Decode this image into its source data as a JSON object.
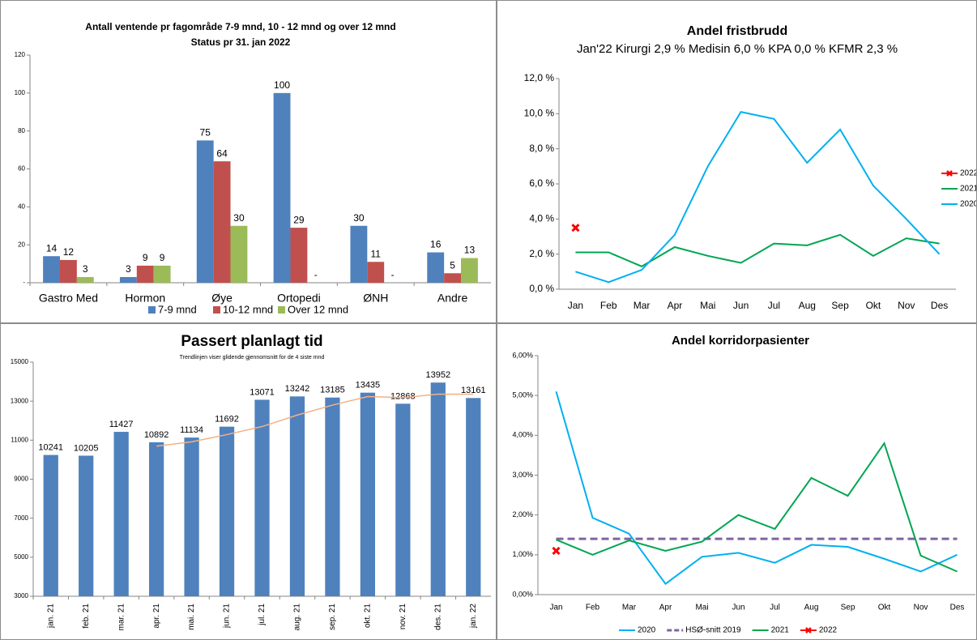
{
  "chart_data": [
    {
      "type": "bar",
      "title": "Antall ventende pr fagområde 7-9 mnd, 10 - 12 mnd og over 12 mnd",
      "subtitle": "Status pr 31. jan 2022",
      "categories": [
        "Gastro Med",
        "Hormon",
        "Øye",
        "Ortopedi",
        "ØNH",
        "Andre"
      ],
      "series": [
        {
          "name": "7-9 mnd",
          "color": "#4f81bd",
          "values": [
            14,
            3,
            75,
            100,
            30,
            16
          ]
        },
        {
          "name": "10-12 mnd",
          "color": "#c0504d",
          "values": [
            12,
            9,
            64,
            29,
            11,
            5
          ]
        },
        {
          "name": "Over 12 mnd",
          "color": "#9bbb59",
          "values": [
            3,
            9,
            30,
            0,
            0,
            13
          ],
          "value_labels": [
            "3",
            "9",
            "30",
            "-",
            "-",
            "13"
          ]
        }
      ],
      "ylim": [
        0,
        120
      ],
      "yticks": [
        {
          "value": 0,
          "label": "-"
        },
        20,
        40,
        60,
        80,
        100,
        120
      ],
      "legend": "bottom"
    },
    {
      "type": "line",
      "title": "Andel fristbrudd",
      "subtitle": "Jan'22 Kirurgi 2,9 % Medisin 6,0 % KPA 0,0 % KFMR 2,3 %",
      "categories": [
        "Jan",
        "Feb",
        "Mar",
        "Apr",
        "Mai",
        "Jun",
        "Jul",
        "Aug",
        "Sep",
        "Okt",
        "Nov",
        "Des"
      ],
      "series": [
        {
          "name": "2022",
          "color": "#ff0000",
          "marker": "x",
          "values": [
            3.5,
            null,
            null,
            null,
            null,
            null,
            null,
            null,
            null,
            null,
            null,
            null
          ]
        },
        {
          "name": "2021",
          "color": "#00a651",
          "values": [
            2.1,
            2.1,
            1.3,
            2.4,
            1.9,
            1.5,
            2.6,
            2.5,
            3.1,
            1.9,
            2.9,
            2.6
          ]
        },
        {
          "name": "2020",
          "color": "#00b0f0",
          "values": [
            1.0,
            0.4,
            1.1,
            3.1,
            7.0,
            10.1,
            9.7,
            7.2,
            9.1,
            5.9,
            4.0,
            2.0
          ]
        }
      ],
      "ylim": [
        0,
        12
      ],
      "yticks": [
        {
          "value": 0,
          "label": "0,0 %"
        },
        {
          "value": 2,
          "label": "2,0 %"
        },
        {
          "value": 4,
          "label": "4,0 %"
        },
        {
          "value": 6,
          "label": "6,0 %"
        },
        {
          "value": 8,
          "label": "8,0 %"
        },
        {
          "value": 10,
          "label": "10,0 %"
        },
        {
          "value": 12,
          "label": "12,0 %"
        }
      ],
      "legend": "right"
    },
    {
      "type": "bar",
      "title": "Passert planlagt tid",
      "subtitle": "Trendlinjen viser glidende gjennomsnitt for de 4 siste mnd",
      "categories": [
        "jan. 21",
        "feb. 21",
        "mar. 21",
        "apr. 21",
        "mai. 21",
        "jun. 21",
        "jul. 21",
        "aug. 21",
        "sep. 21",
        "okt. 21",
        "nov. 21",
        "des. 21",
        "jan. 22"
      ],
      "series": [
        {
          "color": "#4f81bd",
          "values": [
            10241,
            10205,
            11427,
            10892,
            11134,
            11692,
            13071,
            13242,
            13185,
            13435,
            12868,
            13952,
            13161
          ]
        }
      ],
      "trendline": {
        "type": "moving_average",
        "period": 4,
        "color": "#f4b183"
      },
      "ylim": [
        3000,
        15000
      ],
      "yticks": [
        3000,
        5000,
        7000,
        9000,
        11000,
        13000,
        15000
      ]
    },
    {
      "type": "line",
      "title": "Andel korridorpasienter",
      "categories": [
        "Jan",
        "Feb",
        "Mar",
        "Apr",
        "Mai",
        "Jun",
        "Jul",
        "Aug",
        "Sep",
        "Okt",
        "Nov",
        "Des"
      ],
      "series": [
        {
          "name": "2020",
          "color": "#00b0f0",
          "values": [
            5.1,
            1.93,
            1.53,
            0.27,
            0.95,
            1.05,
            0.8,
            1.25,
            1.2,
            0.9,
            0.58,
            1.0
          ]
        },
        {
          "name": "HSØ-snitt 2019",
          "color": "#8064a2",
          "dash": true,
          "values": [
            1.4,
            1.4,
            1.4,
            1.4,
            1.4,
            1.4,
            1.4,
            1.4,
            1.4,
            1.4,
            1.4,
            1.4
          ]
        },
        {
          "name": "2021",
          "color": "#00a651",
          "values": [
            1.38,
            1.0,
            1.36,
            1.1,
            1.33,
            2.0,
            1.65,
            2.93,
            2.48,
            3.8,
            0.98,
            0.58
          ]
        },
        {
          "name": "2022",
          "color": "#ff0000",
          "marker": "x",
          "values": [
            1.1,
            null,
            null,
            null,
            null,
            null,
            null,
            null,
            null,
            null,
            null,
            null
          ]
        }
      ],
      "ylim": [
        0,
        6
      ],
      "yticks": [
        {
          "value": 0,
          "label": "0,00%"
        },
        {
          "value": 1,
          "label": "1,00%"
        },
        {
          "value": 2,
          "label": "2,00%"
        },
        {
          "value": 3,
          "label": "3,00%"
        },
        {
          "value": 4,
          "label": "4,00%"
        },
        {
          "value": 5,
          "label": "5,00%"
        },
        {
          "value": 6,
          "label": "6,00%"
        }
      ],
      "legend": "bottom"
    }
  ]
}
